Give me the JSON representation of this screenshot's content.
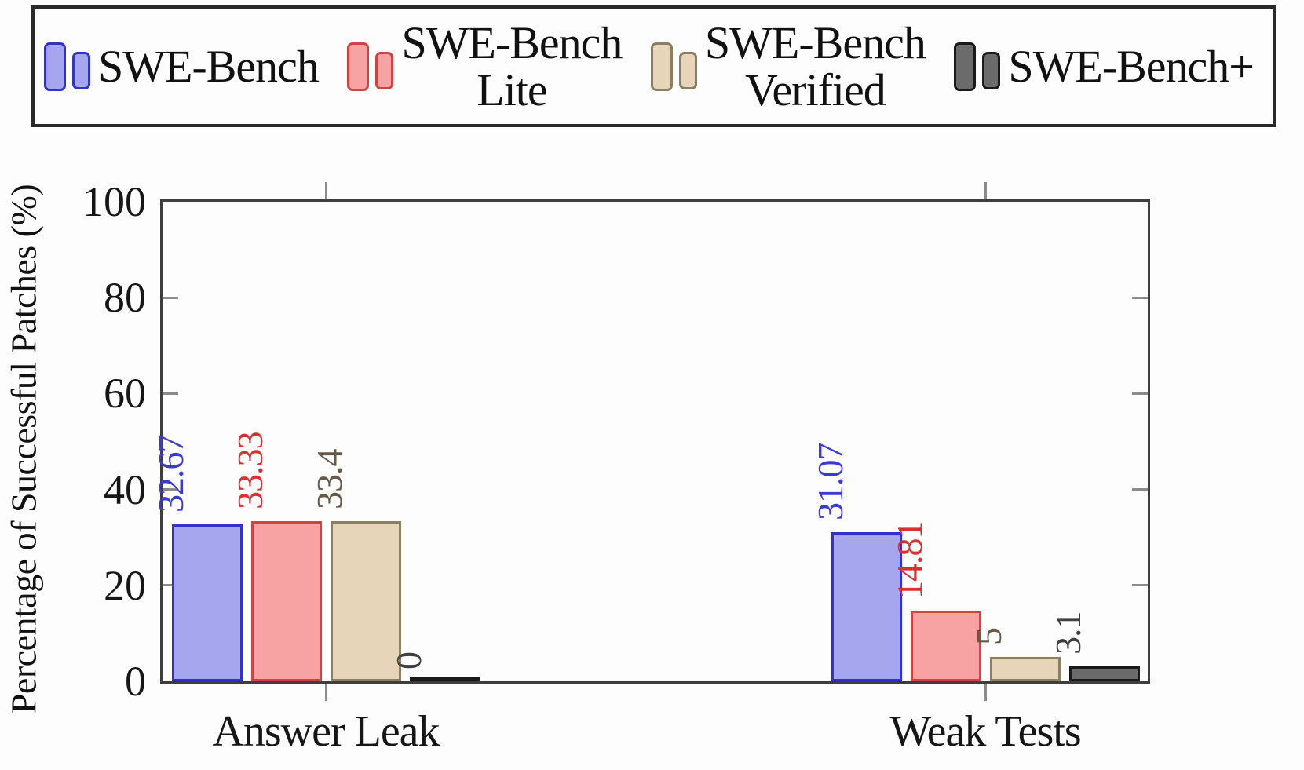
{
  "legend": {
    "entries": [
      {
        "label": "SWE-Bench"
      },
      {
        "label": "SWE-Bench\nLite"
      },
      {
        "label": "SWE-Bench\nVerified"
      },
      {
        "label": "SWE-Bench+"
      }
    ]
  },
  "chart_data": {
    "type": "bar",
    "title": "",
    "xlabel": "",
    "ylabel": "Percentage of Successful Patches (%)",
    "ylim": [
      0,
      100
    ],
    "yticks": [
      0,
      20,
      40,
      60,
      80,
      100
    ],
    "grid": false,
    "legend_position": "top",
    "categories": [
      "Answer Leak",
      "Weak Tests"
    ],
    "series": [
      {
        "name": "SWE-Bench",
        "fill": "#a6a6ee",
        "stroke": "#3232c8",
        "label_color": "#3b3bd0",
        "values": [
          32.67,
          31.07
        ],
        "labels": [
          "32.67",
          "31.07"
        ]
      },
      {
        "name": "SWE-Bench Lite",
        "fill": "#f8a3a3",
        "stroke": "#cc4444",
        "label_color": "#d93030",
        "values": [
          33.33,
          14.81
        ],
        "labels": [
          "33.33",
          "14.81"
        ]
      },
      {
        "name": "SWE-Bench Verified",
        "fill": "#e6d5b8",
        "stroke": "#8a7f63",
        "label_color": "#655a45",
        "values": [
          33.4,
          5
        ],
        "labels": [
          "33.4",
          "5"
        ]
      },
      {
        "name": "SWE-Bench+",
        "fill": "#6b6b6b",
        "stroke": "#1a1a1a",
        "label_color": "#3f3f3f",
        "values": [
          0,
          3.1
        ],
        "labels": [
          "0",
          "3.1"
        ]
      }
    ]
  }
}
